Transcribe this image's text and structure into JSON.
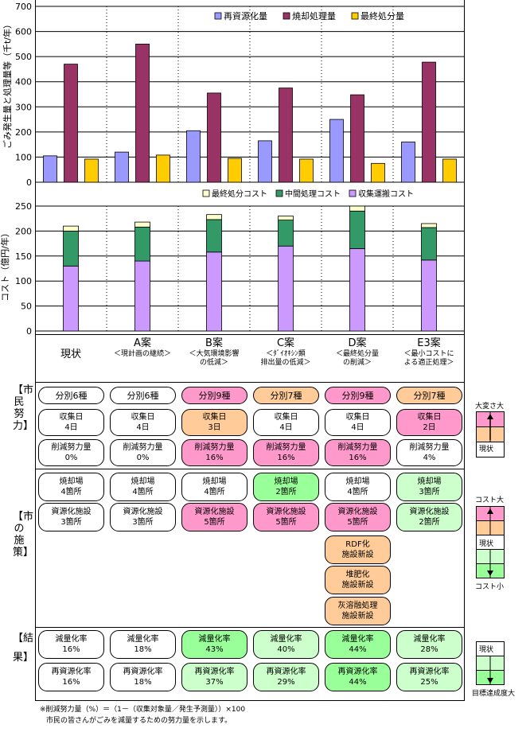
{
  "chart_data": [
    {
      "type": "bar",
      "categories": [
        "現状",
        "A案",
        "B案",
        "C案",
        "D案",
        "E3案"
      ],
      "ylabel": "ごみ発生量と処理量等（千t/年）",
      "ylim": [
        0,
        700
      ],
      "yticks": [
        "0",
        "100",
        "200",
        "300",
        "400",
        "500",
        "600",
        "700"
      ],
      "legend_position": "top-right",
      "series": [
        {
          "name": "再資源化量",
          "color": "#9999ff",
          "values": [
            105,
            120,
            205,
            165,
            250,
            160
          ]
        },
        {
          "name": "焼却処理量",
          "color": "#993366",
          "values": [
            470,
            550,
            355,
            375,
            348,
            478
          ]
        },
        {
          "name": "最終処分量",
          "color": "#ffcc00",
          "values": [
            92,
            108,
            95,
            92,
            75,
            92
          ]
        }
      ]
    },
    {
      "type": "bar",
      "stacked": true,
      "categories": [
        "現状",
        "A案",
        "B案",
        "C案",
        "D案",
        "E3案"
      ],
      "ylabel": "コスト（億円/年）",
      "ylim": [
        0,
        250
      ],
      "yticks": [
        "0",
        "50",
        "100",
        "150",
        "200",
        "250"
      ],
      "legend_position": "top-right",
      "series": [
        {
          "name": "最終処分コスト",
          "color": "#ffffcc",
          "values": [
            10,
            10,
            10,
            8,
            10,
            8
          ]
        },
        {
          "name": "中間処理コスト",
          "color": "#339966",
          "values": [
            70,
            68,
            65,
            52,
            75,
            65
          ]
        },
        {
          "name": "収集運搬コスト",
          "color": "#cc99ff",
          "values": [
            130,
            140,
            158,
            170,
            165,
            142
          ]
        }
      ]
    }
  ],
  "columns": [
    {
      "title": "現状",
      "sub1": "",
      "sub2": ""
    },
    {
      "title": "A案",
      "sub1": "＜現計画の継続＞",
      "sub2": ""
    },
    {
      "title": "B案",
      "sub1": "＜大気環境影響",
      "sub2": "の低減＞"
    },
    {
      "title": "C案",
      "sub1": "＜ﾀﾞｲｵｷｼﾝ類",
      "sub2": "排出量の低減＞"
    },
    {
      "title": "D案",
      "sub1": "＜最終処分量",
      "sub2": "の削減＞"
    },
    {
      "title": "E3案",
      "sub1": "＜最小コストに",
      "sub2": "よる適正処理＞"
    }
  ],
  "sections": {
    "effort": "【市民努力】",
    "policy": "【市の施策】",
    "result": "【結果】"
  },
  "effort": [
    [
      [
        "分別6種"
      ],
      [
        "収集日",
        "4日"
      ],
      [
        "削減努力量",
        "0%"
      ]
    ],
    [
      [
        "分別6種"
      ],
      [
        "収集日",
        "4日"
      ],
      [
        "削減努力量",
        "0%"
      ]
    ],
    [
      [
        "分別9種"
      ],
      [
        "収集日",
        "3日"
      ],
      [
        "削減努力量",
        "16%"
      ]
    ],
    [
      [
        "分別7種"
      ],
      [
        "収集日",
        "4日"
      ],
      [
        "削減努力量",
        "16%"
      ]
    ],
    [
      [
        "分別9種"
      ],
      [
        "収集日",
        "4日"
      ],
      [
        "削減努力量",
        "16%"
      ]
    ],
    [
      [
        "分別7種"
      ],
      [
        "収集日",
        "2日"
      ],
      [
        "削減努力量",
        "4%"
      ]
    ]
  ],
  "policy": [
    [
      [
        "焼却場",
        "4箇所"
      ],
      [
        "資源化施設",
        "3箇所"
      ]
    ],
    [
      [
        "焼却場",
        "4箇所"
      ],
      [
        "資源化施設",
        "3箇所"
      ]
    ],
    [
      [
        "焼却場",
        "4箇所"
      ],
      [
        "資源化施設",
        "5箇所"
      ]
    ],
    [
      [
        "焼却場",
        "2箇所"
      ],
      [
        "資源化施設",
        "5箇所"
      ]
    ],
    [
      [
        "焼却場",
        "4箇所"
      ],
      [
        "資源化施設",
        "5箇所"
      ],
      [
        "RDF化",
        "施設新設"
      ],
      [
        "堆肥化",
        "施設新設"
      ],
      [
        "灰溶融処理",
        "施設新設"
      ]
    ],
    [
      [
        "焼却場",
        "3箇所"
      ],
      [
        "資源化施設",
        "2箇所"
      ]
    ]
  ],
  "result": [
    [
      [
        "減量化率",
        "16%"
      ],
      [
        "再資源化率",
        "16%"
      ]
    ],
    [
      [
        "減量化率",
        "18%"
      ],
      [
        "再資源化率",
        "18%"
      ]
    ],
    [
      [
        "減量化率",
        "43%"
      ],
      [
        "再資源化率",
        "37%"
      ]
    ],
    [
      [
        "減量化率",
        "40%"
      ],
      [
        "再資源化率",
        "29%"
      ]
    ],
    [
      [
        "減量化率",
        "44%"
      ],
      [
        "再資源化率",
        "44%"
      ]
    ],
    [
      [
        "減量化率",
        "28%"
      ],
      [
        "再資源化率",
        "25%"
      ]
    ]
  ],
  "indicators": {
    "effort_top": "大変さ大",
    "effort_bottom": "現状",
    "cost_top": "コスト大",
    "cost_mid": "現状",
    "cost_bottom": "コスト小",
    "result_top": "現状",
    "result_bottom": "目標達成度大"
  },
  "footnote": {
    "line1": "※削減努力量（%）＝（1－（収集対象量／発生予測量））×100",
    "line2": "市民の皆さんがごみを減量するための努力量を示します。"
  },
  "colors": {
    "pink": "#ff99cc",
    "orange": "#ffcc99",
    "green": "#99ff99",
    "light_green": "#ccffcc",
    "white": "#ffffff"
  }
}
